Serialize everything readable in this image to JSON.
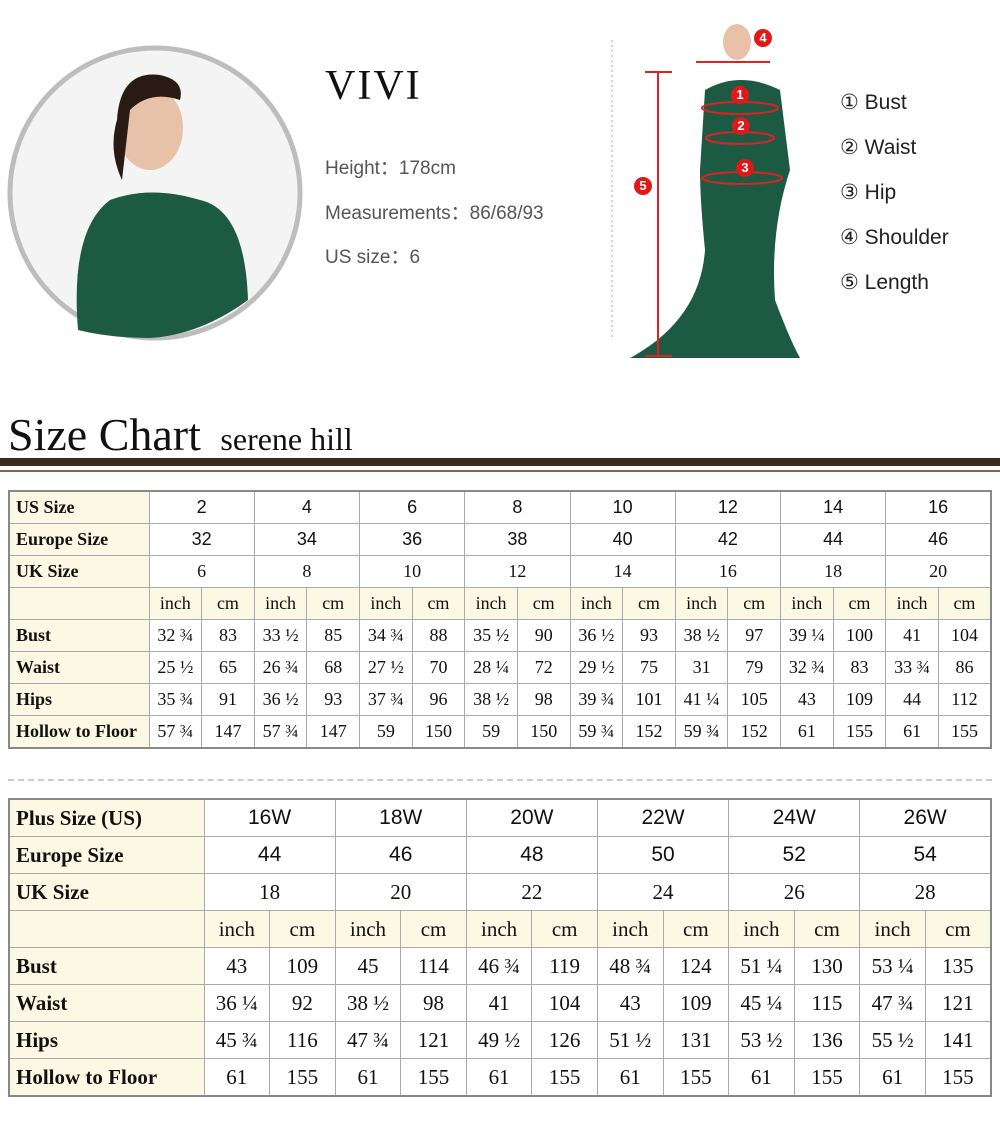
{
  "model": {
    "name": "VIVI",
    "height": "Height：178cm",
    "measurements": "Measurements：86/68/93",
    "us_size": "US size：6"
  },
  "diagram": {
    "markers": [
      "1",
      "2",
      "3",
      "4",
      "5"
    ],
    "legend": [
      "① Bust",
      "② Waist",
      "③ Hip",
      "④ Shoulder",
      "⑤ Length"
    ]
  },
  "header": {
    "title": "Size Chart",
    "brand": "serene hill"
  },
  "table1": {
    "size_rows": [
      {
        "label": "US Size",
        "values": [
          "2",
          "4",
          "6",
          "8",
          "10",
          "12",
          "14",
          "16"
        ]
      },
      {
        "label": "Europe Size",
        "values": [
          "32",
          "34",
          "36",
          "38",
          "40",
          "42",
          "44",
          "46"
        ]
      },
      {
        "label": "UK Size",
        "values": [
          "6",
          "8",
          "10",
          "12",
          "14",
          "16",
          "18",
          "20"
        ]
      }
    ],
    "units": [
      "inch",
      "cm",
      "inch",
      "cm",
      "inch",
      "cm",
      "inch",
      "cm",
      "inch",
      "cm",
      "inch",
      "cm",
      "inch",
      "cm",
      "inch",
      "cm"
    ],
    "rows": [
      {
        "label": "Bust",
        "values": [
          "32 ¾",
          "83",
          "33 ½",
          "85",
          "34 ¾",
          "88",
          "35 ½",
          "90",
          "36 ½",
          "93",
          "38 ½",
          "97",
          "39 ¼",
          "100",
          "41",
          "104"
        ]
      },
      {
        "label": "Waist",
        "values": [
          "25 ½",
          "65",
          "26 ¾",
          "68",
          "27 ½",
          "70",
          "28 ¼",
          "72",
          "29 ½",
          "75",
          "31",
          "79",
          "32 ¾",
          "83",
          "33 ¾",
          "86"
        ]
      },
      {
        "label": "Hips",
        "values": [
          "35 ¾",
          "91",
          "36 ½",
          "93",
          "37 ¾",
          "96",
          "38 ½",
          "98",
          "39 ¾",
          "101",
          "41 ¼",
          "105",
          "43",
          "109",
          "44",
          "112"
        ]
      },
      {
        "label": "Hollow to Floor",
        "values": [
          "57 ¾",
          "147",
          "57 ¾",
          "147",
          "59",
          "150",
          "59",
          "150",
          "59 ¾",
          "152",
          "59 ¾",
          "152",
          "61",
          "155",
          "61",
          "155"
        ]
      }
    ]
  },
  "table2": {
    "size_rows": [
      {
        "label": "Plus Size (US)",
        "values": [
          "16W",
          "18W",
          "20W",
          "22W",
          "24W",
          "26W"
        ]
      },
      {
        "label": "Europe Size",
        "values": [
          "44",
          "46",
          "48",
          "50",
          "52",
          "54"
        ]
      },
      {
        "label": "UK Size",
        "values": [
          "18",
          "20",
          "22",
          "24",
          "26",
          "28"
        ]
      }
    ],
    "units": [
      "inch",
      "cm",
      "inch",
      "cm",
      "inch",
      "cm",
      "inch",
      "cm",
      "inch",
      "cm",
      "inch",
      "cm"
    ],
    "rows": [
      {
        "label": "Bust",
        "values": [
          "43",
          "109",
          "45",
          "114",
          "46 ¾",
          "119",
          "48 ¾",
          "124",
          "51 ¼",
          "130",
          "53 ¼",
          "135"
        ]
      },
      {
        "label": "Waist",
        "values": [
          "36 ¼",
          "92",
          "38 ½",
          "98",
          "41",
          "104",
          "43",
          "109",
          "45 ¼",
          "115",
          "47 ¾",
          "121"
        ]
      },
      {
        "label": "Hips",
        "values": [
          "45 ¾",
          "116",
          "47 ¾",
          "121",
          "49 ½",
          "126",
          "51 ½",
          "131",
          "53 ½",
          "136",
          "55 ½",
          "141"
        ]
      },
      {
        "label": "Hollow to Floor",
        "values": [
          "61",
          "155",
          "61",
          "155",
          "61",
          "155",
          "61",
          "155",
          "61",
          "155",
          "61",
          "155"
        ]
      }
    ]
  }
}
